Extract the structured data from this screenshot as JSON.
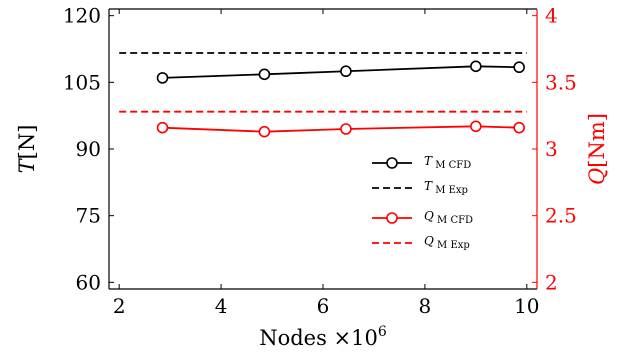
{
  "chart_data": {
    "type": "line",
    "x_axis": {
      "label_text": "Nodes ×10",
      "label_exponent": "6",
      "lim": [
        1.8,
        10.2
      ],
      "ticks": [
        2,
        4,
        6,
        8,
        10
      ],
      "tick_labels": [
        "2",
        "4",
        "6",
        "8",
        "10"
      ]
    },
    "y_left": {
      "label_italic": "T",
      "label_unit": "[N]",
      "lim": [
        58.5,
        121.5
      ],
      "ticks": [
        60,
        75,
        90,
        105,
        120
      ],
      "tick_labels": [
        "60",
        "75",
        "90",
        "105",
        "120"
      ],
      "color": "#000000"
    },
    "y_right": {
      "label_italic": "Q",
      "label_unit": "[Nm]",
      "lim": [
        1.95,
        4.05
      ],
      "ticks": [
        2,
        2.5,
        3,
        3.5,
        4
      ],
      "tick_labels": [
        "2",
        "2.5",
        "3",
        "3.5",
        "4"
      ],
      "color": "#ff0000"
    },
    "series": [
      {
        "name": "T_M CFD",
        "label_main": "T",
        "label_sub": "M CFD",
        "axis": "left",
        "color": "#000000",
        "style": "solid",
        "marker": "circle",
        "x": [
          2.85,
          4.85,
          6.45,
          9.0,
          9.85
        ],
        "y": [
          106.0,
          106.8,
          107.5,
          108.6,
          108.4
        ]
      },
      {
        "name": "T_M Exp",
        "label_main": "T",
        "label_sub": "M Exp",
        "axis": "left",
        "color": "#000000",
        "style": "dashed",
        "marker": "none",
        "x": [
          2.0,
          10.0
        ],
        "y": [
          111.6,
          111.6
        ]
      },
      {
        "name": "Q_M CFD",
        "label_main": "Q",
        "label_sub": "M CFD",
        "axis": "right",
        "color": "#ff0000",
        "style": "solid",
        "marker": "circle",
        "x": [
          2.85,
          4.85,
          6.45,
          9.0,
          9.85
        ],
        "y": [
          3.16,
          3.13,
          3.15,
          3.17,
          3.16
        ]
      },
      {
        "name": "Q_M Exp",
        "label_main": "Q",
        "label_sub": "M Exp",
        "axis": "right",
        "color": "#ff0000",
        "style": "dashed",
        "marker": "none",
        "x": [
          2.0,
          10.0
        ],
        "y": [
          3.28,
          3.28
        ]
      }
    ],
    "legend_position": "right, middle",
    "grid": false
  }
}
